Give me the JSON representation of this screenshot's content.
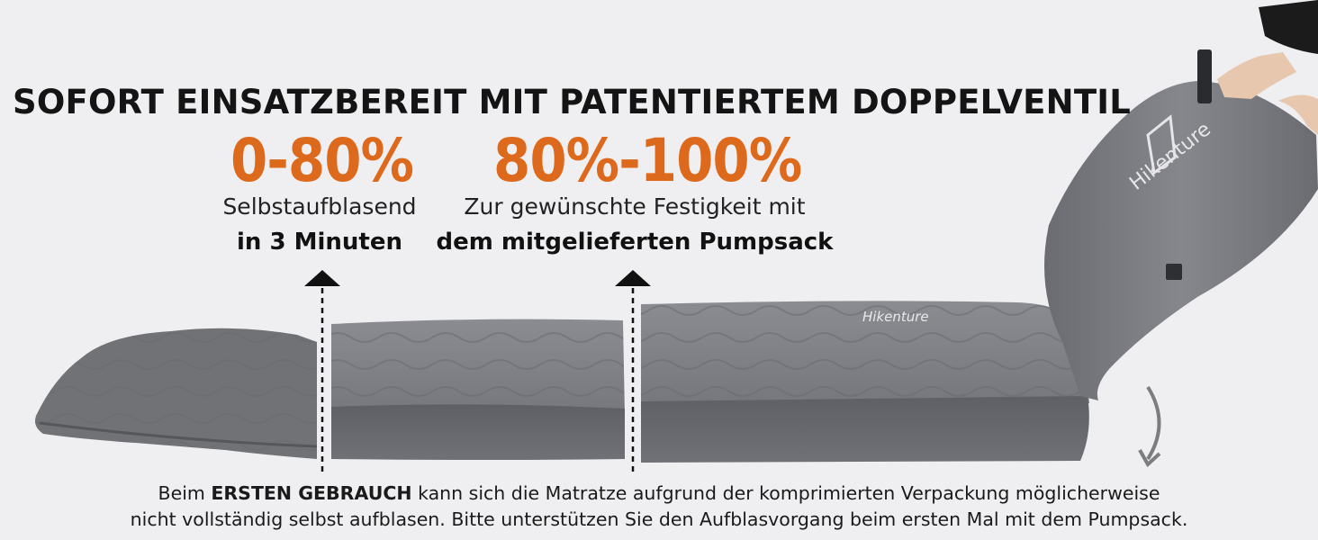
{
  "headline": "SOFORT EINSATZBEREIT MIT PATENTIERTEM DOPPELVENTIL",
  "stage1": {
    "percent": "0-80%",
    "line1": "Selbstaufblasend",
    "line2": "in 3 Minuten"
  },
  "stage2": {
    "percent": "80%-100%",
    "line1": "Zur gewünschte Festigkeit mit",
    "line2": "dem mitgelieferten Pumpsack"
  },
  "footer": {
    "prefix": "Beim ",
    "emphasis": "ERSTEN GEBRAUCH",
    "line1_rest": " kann sich die Matratze aufgrund der komprimierten Verpackung möglicherweise",
    "line2": "nicht vollständig selbst aufblasen. Bitte unterstützen Sie den Aufblasvorgang beim ersten Mal mit dem Pumpsack."
  },
  "brand": {
    "mat_logo": "Hikenture",
    "bag_logo": "Hikenture"
  },
  "colors": {
    "accent": "#dd6a1c",
    "mat": "#6b6d72",
    "background": "#efeff1"
  }
}
